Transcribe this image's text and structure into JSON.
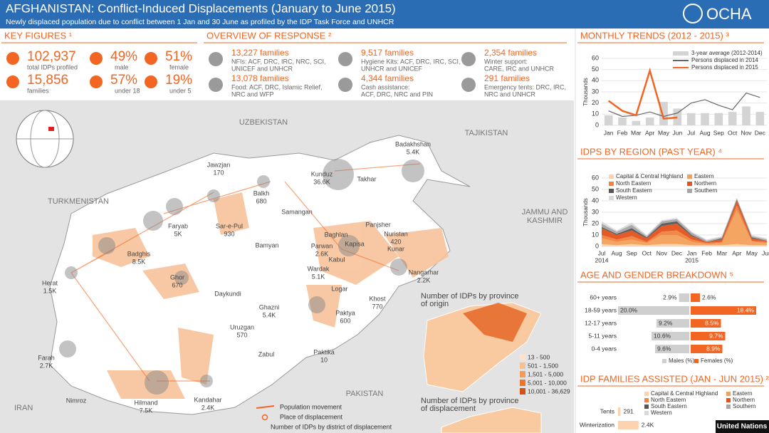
{
  "header": {
    "title": "AFGHANISTAN: Conflict-Induced Displacements (January to June 2015)",
    "subtitle": "Newly displaced population due to conflict between 1 Jan and 30 June as profiled by the IDP Task Force and UNHCR",
    "logo": "OCHA"
  },
  "key_figures": {
    "title": "KEY FIGURES ¹",
    "items": [
      {
        "value": "102,937",
        "label": "total IDPs profiled"
      },
      {
        "value": "15,856",
        "label": "families"
      },
      {
        "value": "49%",
        "label": "male"
      },
      {
        "value": "57%",
        "label": "under 18"
      },
      {
        "value": "51%",
        "label": "female"
      },
      {
        "value": "19%",
        "label": "under 5"
      }
    ]
  },
  "overview": {
    "title": "OVERVIEW OF RESPONSE ²",
    "items": [
      {
        "head": "13,227 families",
        "lines": [
          "NFIs: ACF, DRC, IRC, NRC, SCI,",
          "UNICEF and UNHCR"
        ]
      },
      {
        "head": "13,078 families",
        "lines": [
          "Food: ACF, DRC, Islamic Relief,",
          "NRC and WFP"
        ]
      },
      {
        "head": "9,517 families",
        "lines": [
          "Hygiene Kits: ACF, DRC, IRC, SCI,",
          "UNHCR and UNICEF"
        ]
      },
      {
        "head": "4,344 families",
        "lines": [
          "Cash assistance:",
          "ACF, DRC, NRC and PIN"
        ]
      },
      {
        "head": "2,354 families",
        "lines": [
          "Winter support:",
          "CARE, IRC and UNHCR"
        ]
      },
      {
        "head": "291 families",
        "lines": [
          "Emergency tents: DRC, IRC,",
          "NRC and UNHCR"
        ]
      }
    ]
  },
  "monthly_trends": {
    "type": "bar",
    "title": "MONTHLY TRENDS (2012 - 2015) ³",
    "y_label": "Thousands",
    "categories": [
      "Jan",
      "Feb",
      "Mar",
      "Apr",
      "May",
      "Jun",
      "Jul",
      "Aug",
      "Sep",
      "Oct",
      "Nov",
      "Dec"
    ],
    "series": [
      {
        "name": "3-year average (2012-2014)",
        "type": "bar",
        "color": "#d4d4d4",
        "values": [
          9,
          7,
          4,
          7,
          21,
          15,
          11,
          11,
          11,
          12,
          17,
          12
        ]
      },
      {
        "name": "Persons displaced in 2014",
        "type": "line",
        "color": "#666666",
        "values": [
          13,
          8,
          9,
          12,
          8,
          11,
          20,
          23,
          18,
          14,
          29,
          25
        ]
      },
      {
        "name": "Persons displaced in 2015",
        "type": "line",
        "color": "#f26522",
        "values": [
          22,
          13,
          9,
          49,
          6,
          7,
          null,
          null,
          null,
          null,
          null,
          null
        ]
      }
    ],
    "ylim": [
      0,
      60
    ],
    "yticks": [
      0,
      10,
      20,
      30,
      40,
      50,
      60
    ]
  },
  "idps_by_region": {
    "type": "area",
    "title": "IDPS BY REGION (PAST YEAR) ⁴",
    "y_label": "Thousands",
    "categories": [
      "Jul",
      "Aug",
      "Sep",
      "Oct",
      "Nov",
      "Dec",
      "Jan",
      "Feb",
      "Mar",
      "Apr",
      "May",
      "Jun"
    ],
    "year_labels": [
      "2014",
      null,
      null,
      null,
      null,
      null,
      "2015",
      null,
      null,
      null,
      null,
      null
    ],
    "series": [
      {
        "name": "Capital & Central Highland",
        "color": "#fcd3ae",
        "values": [
          2,
          1,
          2,
          1,
          2,
          2,
          1,
          1,
          1,
          2,
          1,
          1
        ]
      },
      {
        "name": "Eastern",
        "color": "#f4a05a",
        "values": [
          5,
          3,
          4,
          2,
          8,
          8,
          3,
          1,
          2,
          30,
          3,
          2
        ]
      },
      {
        "name": "North Eastern",
        "color": "#f0823e",
        "values": [
          3,
          2,
          3,
          1,
          3,
          4,
          2,
          1,
          1,
          4,
          1,
          1
        ]
      },
      {
        "name": "Northern",
        "color": "#e4521c",
        "values": [
          6,
          4,
          5,
          3,
          5,
          6,
          3,
          1,
          2,
          4,
          2,
          1
        ]
      },
      {
        "name": "South Eastern",
        "color": "#555555",
        "values": [
          1,
          1,
          2,
          1,
          2,
          2,
          1,
          0,
          1,
          1,
          1,
          0
        ]
      },
      {
        "name": "Southern",
        "color": "#a6a6a6",
        "values": [
          3,
          2,
          3,
          1,
          2,
          2,
          2,
          1,
          1,
          1,
          1,
          1
        ]
      },
      {
        "name": "Western",
        "color": "#dadada",
        "values": [
          2,
          1,
          2,
          1,
          1,
          1,
          1,
          1,
          1,
          1,
          1,
          1
        ]
      }
    ],
    "ylim": [
      0,
      60
    ],
    "yticks": [
      0,
      10,
      20,
      30,
      40,
      50,
      60
    ]
  },
  "age_gender": {
    "type": "bar",
    "title": "AGE AND GENDER BREAKDOWN ⁵",
    "categories": [
      "60+ years",
      "18-59 years",
      "12-17 years",
      "5-11 years",
      "0-4 years"
    ],
    "series": [
      {
        "name": "Males (%)",
        "color": "#cfcfcf",
        "values": [
          2.9,
          20.0,
          9.2,
          10.6,
          9.6
        ],
        "value_labels": [
          "2.9%",
          "20.0%",
          "9.2%",
          "10.6%",
          "9.6%"
        ]
      },
      {
        "name": "Females (%)",
        "color": "#f26522",
        "values": [
          2.6,
          18.4,
          8.5,
          9.7,
          8.9
        ],
        "value_labels": [
          "2.6%",
          "18.4%",
          "8.5%",
          "9.7%",
          "8.9%"
        ]
      }
    ]
  },
  "families_assisted": {
    "type": "bar",
    "title": "IDP FAMILIES ASSISTED (JAN - JUN 2015) ²",
    "legend": [
      "Capital & Central Highland",
      "Eastern",
      "North Eastern",
      "Northern",
      "South Eastern",
      "Southern",
      "Western"
    ],
    "legend_colors": [
      "#fcd3ae",
      "#f4a05a",
      "#f0823e",
      "#e4521c",
      "#555555",
      "#a6a6a6",
      "#dadada"
    ],
    "categories": [
      "Tents",
      "Winterization"
    ],
    "values": [
      291,
      2400
    ],
    "value_labels": [
      "291",
      "2.4K"
    ],
    "color": "#fcd3ae"
  },
  "map": {
    "countries": [
      "UZBEKISTAN",
      "TAJIKISTAN",
      "TURKMENISTAN",
      "JAMMU AND",
      "KASHMIR",
      "PAKISTAN",
      "IRAN"
    ],
    "provinces": [
      {
        "name": "Jawzjan",
        "value": "170"
      },
      {
        "name": "Balkh",
        "value": "680"
      },
      {
        "name": "Kunduz",
        "value": "36.6K"
      },
      {
        "name": "Badakhshan",
        "value": "5.4K"
      },
      {
        "name": "Takhar"
      },
      {
        "name": "Samangan"
      },
      {
        "name": "Baghlan"
      },
      {
        "name": "Faryab",
        "value": "5K"
      },
      {
        "name": "Sar-e-Pul",
        "value": "930"
      },
      {
        "name": "Badghis",
        "value": "8.5K"
      },
      {
        "name": "Herat",
        "value": "1.5K"
      },
      {
        "name": "Ghor",
        "value": "670"
      },
      {
        "name": "Bamyan"
      },
      {
        "name": "Parwan",
        "value": "2.6K"
      },
      {
        "name": "Panjsher"
      },
      {
        "name": "Nuristan",
        "value": "420"
      },
      {
        "name": "Kapisa"
      },
      {
        "name": "Kunar"
      },
      {
        "name": "Nangarhar",
        "value": "2.2K"
      },
      {
        "name": "Wardak",
        "value": "5.1K"
      },
      {
        "name": "Kabul"
      },
      {
        "name": "Logar"
      },
      {
        "name": "Khost",
        "value": "770"
      },
      {
        "name": "Paktya",
        "value": "600"
      },
      {
        "name": "Ghazni",
        "value": "5.4K"
      },
      {
        "name": "Daykundi"
      },
      {
        "name": "Uruzgan",
        "value": "570"
      },
      {
        "name": "Zabul"
      },
      {
        "name": "Paktika",
        "value": "10"
      },
      {
        "name": "Farah",
        "value": "2.7K"
      },
      {
        "name": "Nimroz"
      },
      {
        "name": "Hilmand",
        "value": "7.5K"
      },
      {
        "name": "Kandahar",
        "value": "2.4K"
      }
    ],
    "legend": [
      "Population movement",
      "Place of displacement",
      "Number of IDPs by district of displacement"
    ],
    "inset_origin": [
      "Number of IDPs by province",
      "of origin"
    ],
    "inset_displacement": [
      "Number of IDPs by province",
      "of displacement"
    ],
    "ranges": [
      "13 - 500",
      "501 - 1,500",
      "1,501 - 5,000",
      "5,001 - 10,000",
      "10,001 - 36,629"
    ],
    "range_colors": [
      "#fde3cc",
      "#f9bf90",
      "#f39a5a",
      "#ea7430",
      "#d2521a"
    ]
  },
  "footer": "United Nations"
}
